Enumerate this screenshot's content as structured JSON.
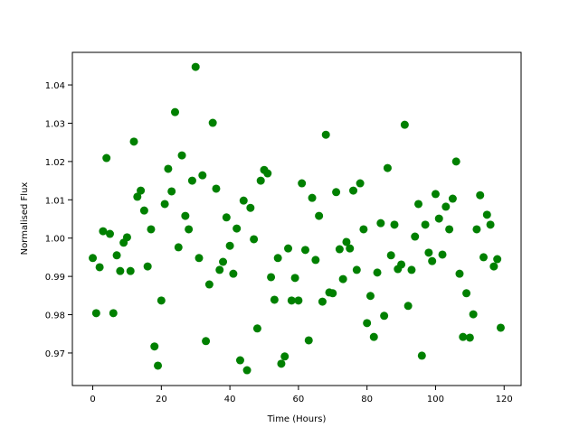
{
  "chart_data": {
    "type": "scatter",
    "xlabel": "Time (Hours)",
    "ylabel": "Normalised Flux",
    "color": "#008000",
    "x": [
      0,
      1,
      2,
      3,
      4,
      5,
      6,
      7,
      8,
      9,
      10,
      11,
      12,
      13,
      14,
      15,
      16,
      17,
      18,
      19,
      20,
      21,
      22,
      23,
      24,
      25,
      26,
      27,
      28,
      29,
      30,
      31,
      32,
      33,
      34,
      35,
      36,
      37,
      38,
      39,
      40,
      41,
      42,
      43,
      44,
      45,
      46,
      47,
      48,
      49,
      50,
      51,
      52,
      53,
      54,
      55,
      56,
      57,
      58,
      59,
      60,
      61,
      62,
      63,
      64,
      65,
      66,
      67,
      68,
      69,
      70,
      71,
      72,
      73,
      74,
      75,
      76,
      77,
      78,
      79,
      80,
      81,
      82,
      83,
      84,
      85,
      86,
      87,
      88,
      89,
      90,
      91,
      92,
      93,
      94,
      95,
      96,
      97,
      98,
      99,
      100,
      101,
      102,
      103,
      104,
      105,
      106,
      107,
      108,
      109,
      110,
      111,
      112,
      113,
      114,
      115,
      116,
      117,
      118,
      119
    ],
    "values": [
      0.9948,
      0.9804,
      0.9924,
      1.0018,
      1.0209,
      1.0011,
      0.9804,
      0.9955,
      0.9914,
      0.9988,
      1.0002,
      0.9914,
      1.0252,
      1.0108,
      1.0124,
      1.0072,
      0.9926,
      1.0023,
      0.9717,
      0.9667,
      0.9837,
      1.0089,
      1.0181,
      1.0122,
      1.0329,
      0.9976,
      1.0216,
      1.0058,
      1.0023,
      1.015,
      1.0447,
      0.9948,
      1.0164,
      0.9731,
      0.9879,
      1.0301,
      1.0129,
      0.9917,
      0.9938,
      1.0054,
      0.998,
      0.9907,
      1.0025,
      0.9681,
      1.0098,
      0.9655,
      1.0079,
      0.9997,
      0.9764,
      1.015,
      1.0178,
      1.0169,
      0.9898,
      0.9839,
      0.9948,
      0.9672,
      0.9691,
      0.9973,
      0.9837,
      0.9896,
      0.9837,
      1.0143,
      0.9969,
      0.9733,
      1.0105,
      0.9943,
      1.0058,
      0.9834,
      1.027,
      0.9858,
      0.9856,
      1.012,
      0.9971,
      0.9893,
      0.999,
      0.9973,
      1.0124,
      0.9917,
      1.0143,
      1.0023,
      0.9778,
      0.9849,
      0.9742,
      0.991,
      1.0039,
      0.9797,
      1.0183,
      0.9955,
      1.0035,
      0.9919,
      0.9931,
      1.0296,
      0.9823,
      0.9917,
      1.0004,
      1.0089,
      0.9693,
      1.0035,
      0.9962,
      0.994,
      1.0115,
      1.0051,
      0.9957,
      1.0082,
      1.0023,
      1.0103,
      1.02,
      0.9907,
      0.9742,
      0.9856,
      0.974,
      0.9801,
      1.0023,
      1.0112,
      0.995,
      1.0061,
      1.0035,
      0.9926,
      0.9945,
      0.9766
    ],
    "xlim": [
      -5.95,
      124.95
    ],
    "ylim": [
      0.9615,
      1.0485
    ],
    "xticks": [
      0,
      20,
      40,
      60,
      80,
      100,
      120
    ],
    "yticks": [
      0.97,
      0.98,
      0.99,
      {
        "value": 1,
        "label": "1.00"
      },
      1.01,
      1.02,
      1.03,
      1.04
    ]
  }
}
